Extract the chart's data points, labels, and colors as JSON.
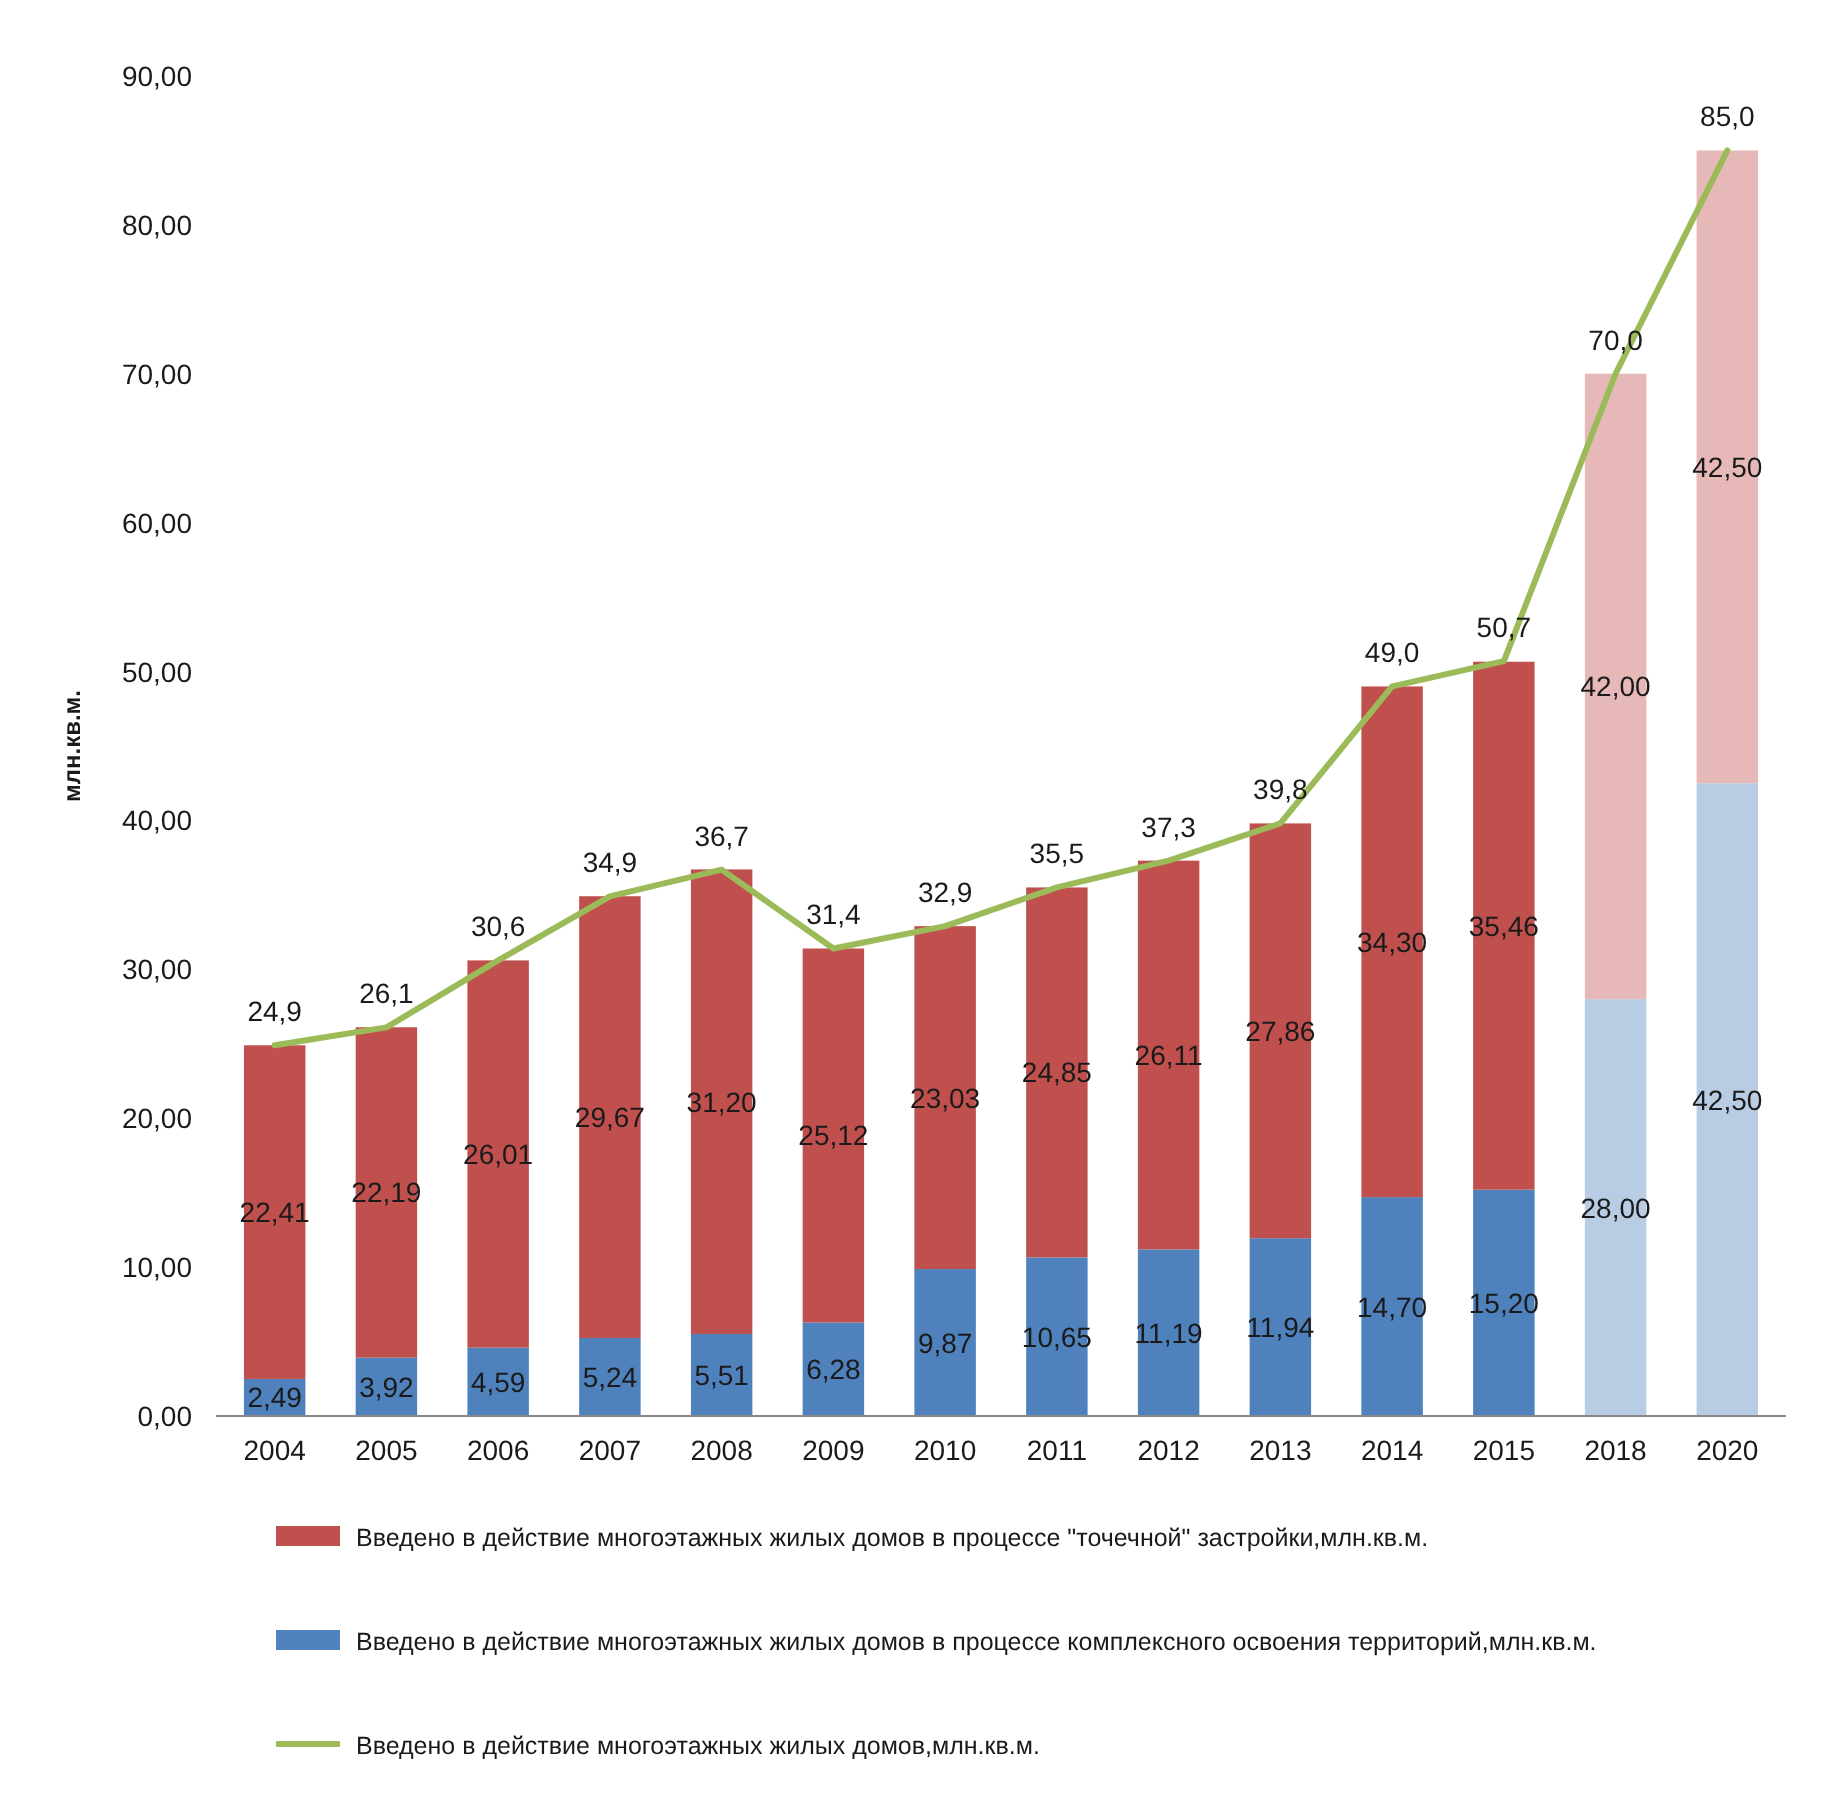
{
  "chart_data": {
    "type": "bar",
    "stacked": true,
    "ylabel": "млн.кв.м.",
    "categories": [
      "2004",
      "2005",
      "2006",
      "2007",
      "2008",
      "2009",
      "2010",
      "2011",
      "2012",
      "2013",
      "2014",
      "2015",
      "2018",
      "2020"
    ],
    "series": [
      {
        "name": "Введено в действие многоэтажных жилых домов в процессе комплексного освоения территорий,млн.кв.м.",
        "color": "#4f81bd",
        "colors": [
          "#4f81bd",
          "#4f81bd",
          "#4f81bd",
          "#4f81bd",
          "#4f81bd",
          "#4f81bd",
          "#4f81bd",
          "#4f81bd",
          "#4f81bd",
          "#4f81bd",
          "#4f81bd",
          "#4f81bd",
          "#b8cce4",
          "#b8cce4"
        ],
        "values": [
          2.49,
          3.92,
          4.59,
          5.24,
          5.51,
          6.28,
          9.87,
          10.65,
          11.19,
          11.94,
          14.7,
          15.2,
          28.0,
          42.5
        ],
        "value_labels": [
          "2,49",
          "3,92",
          "4,59",
          "5,24",
          "5,51",
          "6,28",
          "9,87",
          "10,65",
          "11,19",
          "11,94",
          "14,70",
          "15,20",
          "28,00",
          "42,50"
        ]
      },
      {
        "name": "Введено в действие многоэтажных жилых домов в процессе \"точечной\" застройки,млн.кв.м.",
        "color": "#c0504d",
        "colors": [
          "#c0504d",
          "#c0504d",
          "#c0504d",
          "#c0504d",
          "#c0504d",
          "#c0504d",
          "#c0504d",
          "#c0504d",
          "#c0504d",
          "#c0504d",
          "#c0504d",
          "#c0504d",
          "#e6b9b8",
          "#e6b9b8"
        ],
        "values": [
          22.41,
          22.19,
          26.01,
          29.67,
          31.2,
          25.12,
          23.03,
          24.85,
          26.11,
          27.86,
          34.3,
          35.46,
          42.0,
          42.5
        ],
        "value_labels": [
          "22,41",
          "22,19",
          "26,01",
          "29,67",
          "31,20",
          "25,12",
          "23,03",
          "24,85",
          "26,11",
          "27,86",
          "34,30",
          "35,46",
          "42,00",
          "42,50"
        ]
      },
      {
        "type": "line",
        "name": "Введено в действие многоэтажных жилых домов,млн.кв.м.",
        "color": "#9bbb59",
        "values": [
          24.9,
          26.1,
          30.6,
          34.9,
          36.7,
          31.4,
          32.9,
          35.5,
          37.3,
          39.8,
          49.0,
          50.7,
          70.0,
          85.0
        ],
        "value_labels": [
          "24,9",
          "26,1",
          "30,6",
          "34,9",
          "36,7",
          "31,4",
          "32,9",
          "35,5",
          "37,3",
          "39,8",
          "49,0",
          "50,7",
          "70,0",
          "85,0"
        ]
      }
    ],
    "ylim": [
      0,
      90
    ],
    "yticks": [
      {
        "value": 0,
        "label": "0,00"
      },
      {
        "value": 10,
        "label": "10,00"
      },
      {
        "value": 20,
        "label": "20,00"
      },
      {
        "value": 30,
        "label": "30,00"
      },
      {
        "value": 40,
        "label": "40,00"
      },
      {
        "value": 50,
        "label": "50,00"
      },
      {
        "value": 60,
        "label": "60,00"
      },
      {
        "value": 70,
        "label": "70,00"
      },
      {
        "value": 80,
        "label": "80,00"
      },
      {
        "value": 90,
        "label": "90,00"
      }
    ],
    "grid": false,
    "legend": "bottom",
    "marker": "none",
    "line_style": "solid"
  }
}
